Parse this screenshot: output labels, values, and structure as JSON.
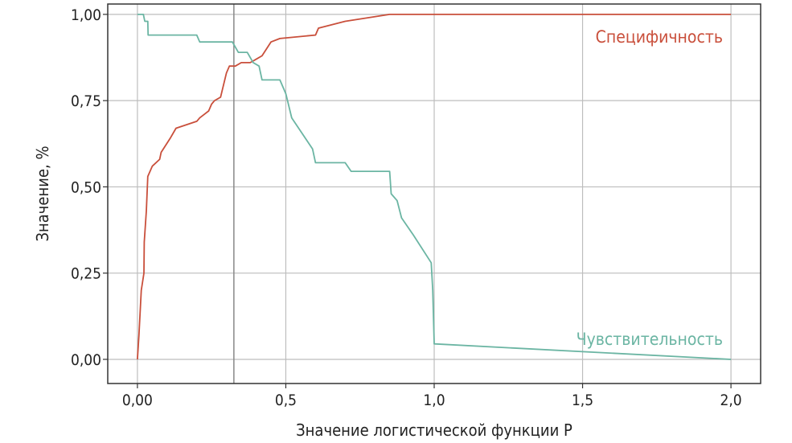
{
  "chart_data": {
    "type": "line",
    "title": "",
    "xlabel": "Значение логистической функции P",
    "ylabel": "Значение, %",
    "xlim": [
      -0.1,
      2.1
    ],
    "ylim": [
      -0.07,
      1.03
    ],
    "grid": true,
    "vline": 0.325,
    "x_ticks": [
      0.0,
      0.5,
      1.0,
      1.5,
      2.0
    ],
    "x_tick_labels": [
      "0,00",
      "0,5",
      "1,0",
      "1,5",
      "2,0"
    ],
    "y_ticks": [
      0.0,
      0.25,
      0.5,
      0.75,
      1.0
    ],
    "y_tick_labels": [
      "0,00",
      "0,25",
      "0,50",
      "0,75",
      "1,00"
    ],
    "series": [
      {
        "name": "Специфичность",
        "color": "#c94f3b",
        "label_color": "#c94f3b",
        "points": [
          [
            0.0,
            0.0
          ],
          [
            0.005,
            0.07
          ],
          [
            0.013,
            0.2
          ],
          [
            0.022,
            0.25
          ],
          [
            0.023,
            0.34
          ],
          [
            0.03,
            0.43
          ],
          [
            0.035,
            0.53
          ],
          [
            0.05,
            0.56
          ],
          [
            0.075,
            0.58
          ],
          [
            0.08,
            0.6
          ],
          [
            0.11,
            0.64
          ],
          [
            0.13,
            0.67
          ],
          [
            0.2,
            0.69
          ],
          [
            0.21,
            0.7
          ],
          [
            0.24,
            0.72
          ],
          [
            0.25,
            0.74
          ],
          [
            0.26,
            0.75
          ],
          [
            0.28,
            0.76
          ],
          [
            0.3,
            0.83
          ],
          [
            0.31,
            0.85
          ],
          [
            0.33,
            0.85
          ],
          [
            0.35,
            0.86
          ],
          [
            0.38,
            0.86
          ],
          [
            0.4,
            0.87
          ],
          [
            0.42,
            0.88
          ],
          [
            0.45,
            0.92
          ],
          [
            0.48,
            0.93
          ],
          [
            0.6,
            0.94
          ],
          [
            0.61,
            0.96
          ],
          [
            0.7,
            0.98
          ],
          [
            0.85,
            1.0
          ],
          [
            2.0,
            1.0
          ]
        ]
      },
      {
        "name": "Чувствительность",
        "color": "#6bb5a3",
        "label_color": "#6bb5a3",
        "points": [
          [
            0.0,
            1.0
          ],
          [
            0.02,
            1.0
          ],
          [
            0.025,
            0.98
          ],
          [
            0.035,
            0.98
          ],
          [
            0.036,
            0.94
          ],
          [
            0.2,
            0.94
          ],
          [
            0.21,
            0.92
          ],
          [
            0.32,
            0.92
          ],
          [
            0.34,
            0.89
          ],
          [
            0.37,
            0.89
          ],
          [
            0.39,
            0.86
          ],
          [
            0.41,
            0.85
          ],
          [
            0.42,
            0.81
          ],
          [
            0.48,
            0.81
          ],
          [
            0.5,
            0.77
          ],
          [
            0.52,
            0.7
          ],
          [
            0.59,
            0.61
          ],
          [
            0.6,
            0.57
          ],
          [
            0.7,
            0.57
          ],
          [
            0.72,
            0.545
          ],
          [
            0.85,
            0.545
          ],
          [
            0.855,
            0.48
          ],
          [
            0.875,
            0.46
          ],
          [
            0.89,
            0.41
          ],
          [
            0.93,
            0.36
          ],
          [
            0.99,
            0.28
          ],
          [
            0.995,
            0.2
          ],
          [
            1.0,
            0.045
          ],
          [
            2.0,
            0.0
          ]
        ]
      }
    ]
  }
}
